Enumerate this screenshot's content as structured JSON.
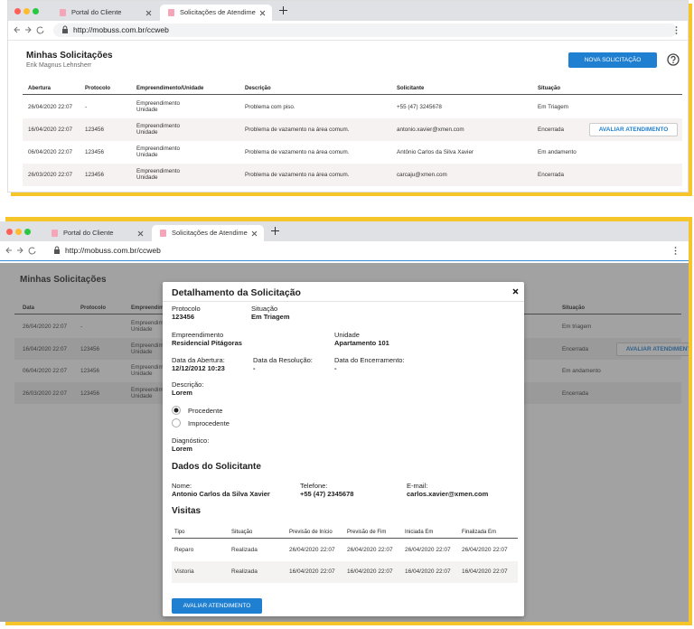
{
  "browser": {
    "tabs": [
      "Portal do Cliente",
      "Solicitações de Atendimen"
    ],
    "url": "http://mobuss.com.br/ccweb"
  },
  "list_page": {
    "title": "Minhas Solicitações",
    "subtitle": "Erik Magnus Lehnsherr",
    "new_button": "NOVA SOLICITAÇÃO",
    "table": {
      "columns": [
        "Abertura",
        "Protocolo",
        "Empreendimento/Unidade",
        "Descrição",
        "Solicitante",
        "Situação"
      ],
      "rows": [
        [
          "26/04/2020 22:07",
          "-",
          "Empreendimento\nUnidade",
          "Problema com piso.",
          "+55 (47) 3245678",
          "Em Triagem"
        ],
        [
          "16/04/2020 22:07",
          "123456",
          "Empreendimento\nUnidade",
          "Problema de vazamento na área comum.",
          "antonio.xavier@xmen.com",
          "Encerrada"
        ],
        [
          "06/04/2020 22:07",
          "123456",
          "Empreendimento\nUnidade",
          "Problema de vazamento na área comum.",
          "Antônio Carlos da Silva Xavier",
          "Em andamento"
        ],
        [
          "26/03/2020 22:07",
          "123456",
          "Empreendimento\nUnidade",
          "Problema de vazamento na área comum.",
          "carcaju@xmen.com",
          "Encerrada"
        ]
      ]
    },
    "action_button": "AVALIAR ATENDIMENTO"
  },
  "detail_page": {
    "title": "Minhas Solicitações",
    "table": {
      "columns": [
        "Data",
        "Protocolo",
        "Empreendimento",
        "Situação"
      ],
      "rows": [
        [
          "26/04/2020 22:07",
          "-",
          "Empreendimento\nUnidade",
          "Em triagem"
        ],
        [
          "16/04/2020 22:07",
          "123456",
          "Empreendimento\nUnidade",
          "Encerrada"
        ],
        [
          "06/04/2020 22:07",
          "123456",
          "Empreendimento\nUnidade",
          "Em andamento"
        ],
        [
          "26/03/2020 22:07",
          "123456",
          "Empreendimento\nUnidade",
          "Encerrada"
        ]
      ]
    },
    "action_button": "AVALIAR ATENDIMENTO"
  },
  "modal": {
    "title": "Detalhamento da Solicitação",
    "field_rows": [
      [
        {
          "label": "Protocolo",
          "value": "123456"
        },
        {
          "label": "Situação",
          "value": "Em Triagem"
        }
      ],
      [
        {
          "label": "Empreendimento",
          "value": "Residencial Pitágoras"
        },
        {
          "label": "Unidade",
          "value": "Apartamento 101"
        }
      ],
      [
        {
          "label": "Data da Abertura:",
          "value": "12/12/2012 10:23"
        },
        {
          "label": "Data da Resolução:",
          "value": "-"
        },
        {
          "label": "Data do Encerramento:",
          "value": "-"
        }
      ],
      [
        {
          "label": "Descrição:",
          "value": "Lorem"
        }
      ]
    ],
    "options": [
      "Procedente",
      "Improcedente"
    ],
    "selected_option": 0,
    "diagnosis": {
      "label": "Diagnóstico:",
      "value": "Lorem"
    },
    "requester_heading": "Dados do Solicitante",
    "requester_fields": [
      {
        "label": "Nome:",
        "value": "Antonio Carlos da Silva Xavier"
      },
      {
        "label": "Telefone:",
        "value": "+55 (47) 2345678"
      },
      {
        "label": "E-mail:",
        "value": "carlos.xavier@xmen.com"
      }
    ],
    "visits_heading": "Visitas",
    "visits": {
      "columns": [
        "Tipo",
        "Situação",
        "Previsão de Início",
        "Previsão de Fim",
        "Iniciada Em",
        "Finalizada Em"
      ],
      "rows": [
        [
          "Reparo",
          "Realizada",
          "26/04/2020 22:07",
          "26/04/2020 22:07",
          "26/04/2020 22:07",
          "26/04/2020 22:07"
        ],
        [
          "Vistoria",
          "Realizada",
          "16/04/2020 22:07",
          "16/04/2020 22:07",
          "16/04/2020 22:07",
          "16/04/2020 22:07"
        ]
      ]
    },
    "button": "AVALIAR ATENDIMENTO"
  }
}
